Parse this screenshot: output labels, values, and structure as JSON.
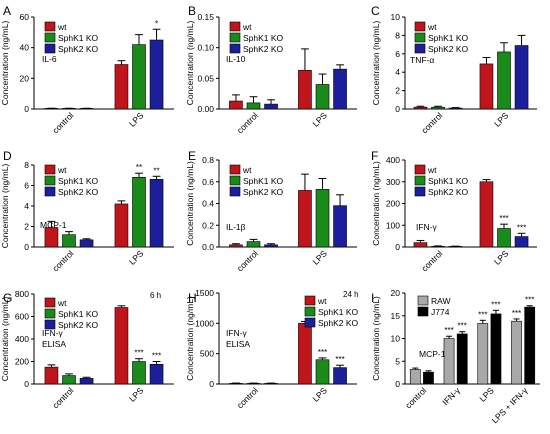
{
  "colors": {
    "wt": "#c0151b",
    "sphk1": "#1a8a1a",
    "sphk2": "#1c1f9c",
    "raw": "#a8a8a8",
    "j774": "#000000"
  },
  "ylabel": "Concentration (ng/mL)",
  "chart_data": [
    {
      "panel": "A",
      "type": "bar",
      "cytokine": "IL-6",
      "categories": [
        "control",
        "LPS"
      ],
      "ylim": [
        0,
        60
      ],
      "yticks": [
        "0",
        "20",
        "40",
        "60"
      ],
      "yticks_num": [
        0,
        20,
        40,
        60
      ],
      "ylabel": "Concentration (ng/mL)",
      "legend": "top-left",
      "series": [
        {
          "name": "wt",
          "values": [
            0.3,
            29
          ],
          "errors": [
            0.2,
            2.5
          ],
          "stars": [
            "",
            ""
          ]
        },
        {
          "name": "SphK1 KO",
          "values": [
            0.3,
            42
          ],
          "errors": [
            0.2,
            6.5
          ],
          "stars": [
            "",
            ""
          ]
        },
        {
          "name": "SphK2 KO",
          "values": [
            0.3,
            45
          ],
          "errors": [
            0.2,
            7
          ],
          "stars": [
            "",
            "*"
          ]
        }
      ]
    },
    {
      "panel": "B",
      "type": "bar",
      "cytokine": "IL-10",
      "categories": [
        "control",
        "LPS"
      ],
      "ylim": [
        0,
        0.15
      ],
      "yticks": [
        "0.00",
        "0.05",
        "0.10",
        "0.15"
      ],
      "yticks_num": [
        0,
        0.05,
        0.1,
        0.15
      ],
      "ylabel": "Concentration (ng/mL)",
      "legend": "top-left",
      "series": [
        {
          "name": "wt",
          "values": [
            0.013,
            0.063
          ],
          "errors": [
            0.01,
            0.035
          ],
          "stars": [
            "",
            ""
          ]
        },
        {
          "name": "SphK1 KO",
          "values": [
            0.01,
            0.04
          ],
          "errors": [
            0.01,
            0.017
          ],
          "stars": [
            "",
            ""
          ]
        },
        {
          "name": "SphK2 KO",
          "values": [
            0.008,
            0.065
          ],
          "errors": [
            0.007,
            0.007
          ],
          "stars": [
            "",
            ""
          ]
        }
      ]
    },
    {
      "panel": "C",
      "type": "bar",
      "cytokine": "TNF-α",
      "categories": [
        "control",
        "LPS"
      ],
      "ylim": [
        0,
        10
      ],
      "yticks": [
        "0",
        "2",
        "4",
        "6",
        "8",
        "10"
      ],
      "yticks_num": [
        0,
        2,
        4,
        6,
        8,
        10
      ],
      "ylabel": "Concentration (ng/mL)",
      "legend": "top-left",
      "series": [
        {
          "name": "wt",
          "values": [
            0.2,
            4.9
          ],
          "errors": [
            0.1,
            0.7
          ],
          "stars": [
            "",
            ""
          ]
        },
        {
          "name": "SphK1 KO",
          "values": [
            0.2,
            6.2
          ],
          "errors": [
            0.1,
            1.0
          ],
          "stars": [
            "",
            ""
          ]
        },
        {
          "name": "SphK2 KO",
          "values": [
            0.1,
            6.9
          ],
          "errors": [
            0.05,
            1.1
          ],
          "stars": [
            "",
            ""
          ]
        }
      ]
    },
    {
      "panel": "D",
      "type": "bar",
      "cytokine": "MCP-1",
      "categories": [
        "control",
        "LPS"
      ],
      "ylim": [
        0,
        8
      ],
      "yticks": [
        "0",
        "2",
        "4",
        "6",
        "8"
      ],
      "yticks_num": [
        0,
        2,
        4,
        6,
        8
      ],
      "ylabel": "Concentration (ng/mL)",
      "legend": "top-left",
      "series": [
        {
          "name": "wt",
          "values": [
            1.9,
            4.2
          ],
          "errors": [
            0.6,
            0.3
          ],
          "stars": [
            "",
            ""
          ]
        },
        {
          "name": "SphK1 KO",
          "values": [
            1.2,
            6.8
          ],
          "errors": [
            0.3,
            0.4
          ],
          "stars": [
            "",
            "**"
          ]
        },
        {
          "name": "SphK2 KO",
          "values": [
            0.7,
            6.6
          ],
          "errors": [
            0.1,
            0.3
          ],
          "stars": [
            "",
            "**"
          ]
        }
      ]
    },
    {
      "panel": "E",
      "type": "bar",
      "cytokine": "IL-1β",
      "categories": [
        "control",
        "LPS"
      ],
      "ylim": [
        0,
        0.8
      ],
      "yticks": [
        "0.0",
        "0.2",
        "0.4",
        "0.6",
        "0.8"
      ],
      "yticks_num": [
        0,
        0.2,
        0.4,
        0.6,
        0.8
      ],
      "ylabel": "Concentration (ng/mL)",
      "legend": "top-left",
      "series": [
        {
          "name": "wt",
          "values": [
            0.02,
            0.52
          ],
          "errors": [
            0.01,
            0.15
          ],
          "stars": [
            "",
            ""
          ]
        },
        {
          "name": "SphK1 KO",
          "values": [
            0.05,
            0.53
          ],
          "errors": [
            0.02,
            0.1
          ],
          "stars": [
            "",
            ""
          ]
        },
        {
          "name": "SphK2 KO",
          "values": [
            0.02,
            0.38
          ],
          "errors": [
            0.01,
            0.1
          ],
          "stars": [
            "",
            ""
          ]
        }
      ]
    },
    {
      "panel": "F",
      "type": "bar",
      "cytokine": "IFN-γ",
      "categories": [
        "control",
        "LPS"
      ],
      "ylim": [
        0,
        400
      ],
      "yticks": [
        "0",
        "100",
        "200",
        "300",
        "400"
      ],
      "yticks_num": [
        0,
        100,
        200,
        300,
        400
      ],
      "ylabel": "Concentration (ng/mL)",
      "legend": "top-left",
      "series": [
        {
          "name": "wt",
          "values": [
            20,
            300
          ],
          "errors": [
            10,
            10
          ],
          "stars": [
            "",
            ""
          ]
        },
        {
          "name": "SphK1 KO",
          "values": [
            3,
            85
          ],
          "errors": [
            2,
            20
          ],
          "stars": [
            "",
            "***"
          ]
        },
        {
          "name": "SphK2 KO",
          "values": [
            2,
            48
          ],
          "errors": [
            2,
            15
          ],
          "stars": [
            "",
            "***"
          ]
        }
      ]
    },
    {
      "panel": "G",
      "type": "bar",
      "cytokine": "IFN-γ",
      "assay": "ELISA",
      "time": "6 h",
      "categories": [
        "control",
        "LPS"
      ],
      "ylim": [
        0,
        800
      ],
      "yticks": [
        "0",
        "200",
        "400",
        "600",
        "800"
      ],
      "yticks_num": [
        0,
        200,
        400,
        600,
        800
      ],
      "ylabel": "Concentration (ng/mL)",
      "legend": "top-left",
      "series": [
        {
          "name": "wt",
          "values": [
            150,
            680
          ],
          "errors": [
            20,
            15
          ],
          "stars": [
            "",
            ""
          ]
        },
        {
          "name": "SphK1 KO",
          "values": [
            75,
            200
          ],
          "errors": [
            15,
            25
          ],
          "stars": [
            "",
            "***"
          ]
        },
        {
          "name": "SphK2 KO",
          "values": [
            50,
            175
          ],
          "errors": [
            10,
            25
          ],
          "stars": [
            "",
            "***"
          ]
        }
      ]
    },
    {
      "panel": "H",
      "type": "bar",
      "cytokine": "IFN-γ",
      "assay": "ELISA",
      "time": "24 h",
      "categories": [
        "control",
        "LPS"
      ],
      "ylim": [
        0,
        1500
      ],
      "yticks": [
        "0",
        "500",
        "1000",
        "1500"
      ],
      "yticks_num": [
        0,
        500,
        1000,
        1500
      ],
      "ylabel": "Concentration (ng/mL)",
      "legend": "top-right",
      "series": [
        {
          "name": "wt",
          "values": [
            10,
            1000
          ],
          "errors": [
            5,
            30
          ],
          "stars": [
            "",
            ""
          ]
        },
        {
          "name": "SphK1 KO",
          "values": [
            10,
            400
          ],
          "errors": [
            5,
            30
          ],
          "stars": [
            "",
            "***"
          ]
        },
        {
          "name": "SphK2 KO",
          "values": [
            10,
            270
          ],
          "errors": [
            5,
            40
          ],
          "stars": [
            "",
            "***"
          ]
        }
      ]
    },
    {
      "panel": "I",
      "type": "bar",
      "cytokine": "MCP-1",
      "categories": [
        "control",
        "IFN-γ",
        "LPS",
        "LPS + IFN-γ"
      ],
      "ylim": [
        0,
        20
      ],
      "yticks": [
        "0",
        "5",
        "10",
        "15",
        "20"
      ],
      "yticks_num": [
        0,
        5,
        10,
        15,
        20
      ],
      "ylabel": "Concentration (ng/mL)",
      "legend": "top-left",
      "series": [
        {
          "name": "RAW",
          "values": [
            3.2,
            10.0,
            13.3,
            13.8
          ],
          "errors": [
            0.3,
            0.5,
            0.7,
            0.5
          ],
          "stars": [
            "",
            "***",
            "***",
            "***"
          ]
        },
        {
          "name": "J774",
          "values": [
            2.6,
            11.0,
            15.4,
            16.9
          ],
          "errors": [
            0.3,
            0.5,
            0.8,
            0.3
          ],
          "stars": [
            "",
            "***",
            "***",
            "***"
          ]
        }
      ]
    }
  ]
}
